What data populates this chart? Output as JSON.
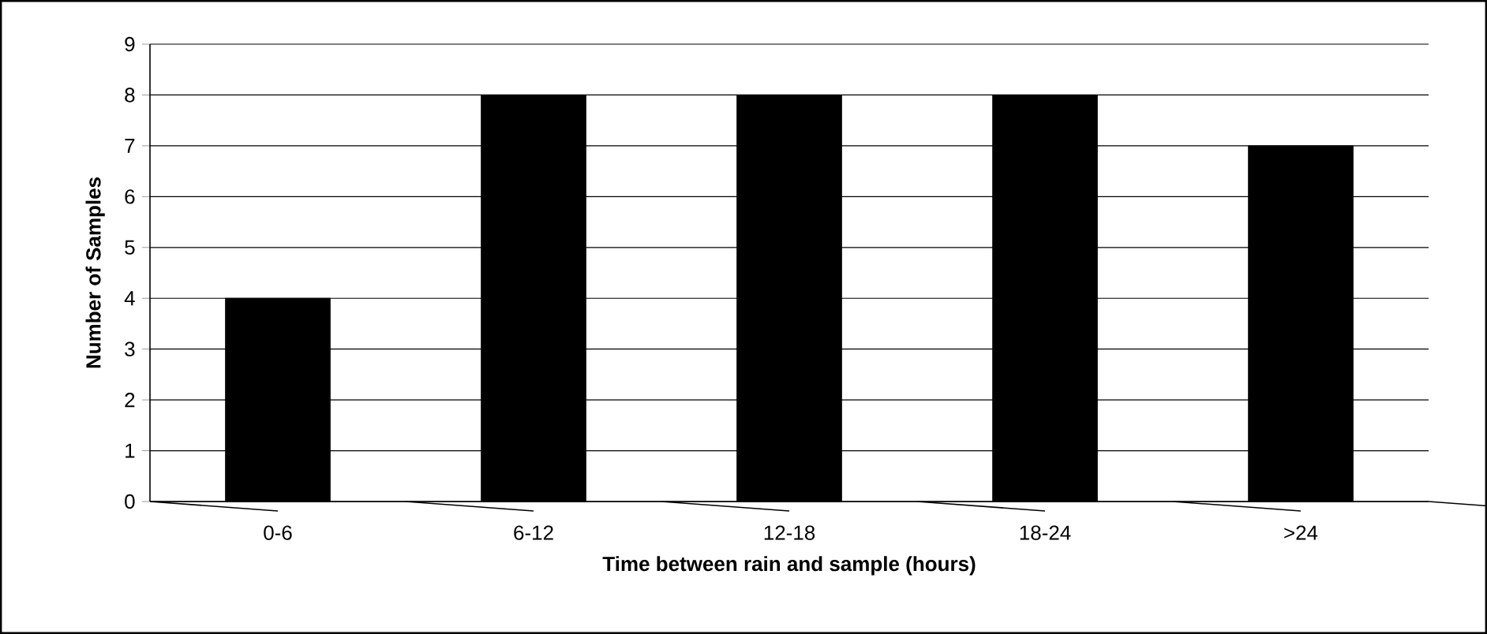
{
  "chart_data": {
    "type": "bar",
    "xlabel": "Time between rain and sample (hours)",
    "ylabel": "Number of Samples",
    "categories": [
      "0-6",
      "6-12",
      "12-18",
      "18-24",
      ">24"
    ],
    "values": [
      4,
      8,
      8,
      8,
      7
    ],
    "color": "#000000",
    "ylim": [
      0,
      9
    ],
    "yticks": [
      0,
      1,
      2,
      3,
      4,
      5,
      6,
      7,
      8,
      9
    ],
    "grid": "y"
  }
}
